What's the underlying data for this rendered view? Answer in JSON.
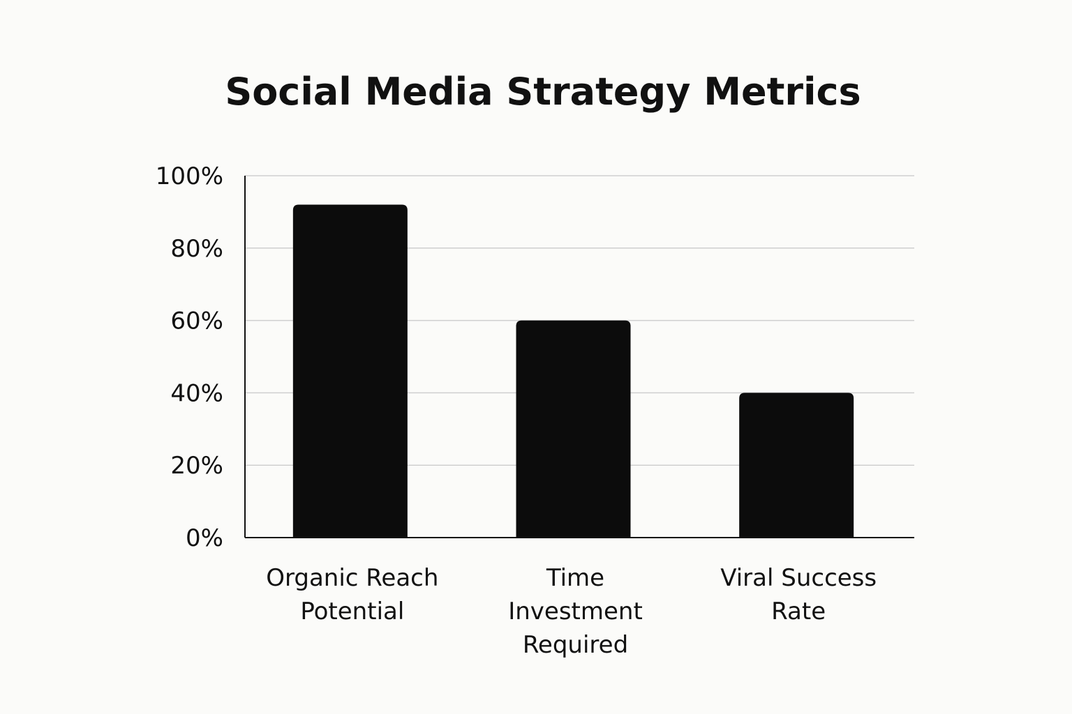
{
  "chart_data": {
    "type": "bar",
    "title": "Social Media Strategy Metrics",
    "categories": [
      [
        "Organic Reach",
        "Potential"
      ],
      [
        "Time",
        "Investment",
        "Required"
      ],
      [
        "Viral Success",
        "Rate"
      ]
    ],
    "values": [
      92,
      60,
      40
    ],
    "unit": "%",
    "ylim": [
      0,
      100
    ],
    "yticks": [
      "0%",
      "20%",
      "40%",
      "60%",
      "80%",
      "100%"
    ],
    "grid": true,
    "legend": "none",
    "colors": {
      "bar": "#0c0c0c",
      "grid": "#cfcfcf",
      "axis": "#111111",
      "background": "#fbfbf9"
    }
  }
}
